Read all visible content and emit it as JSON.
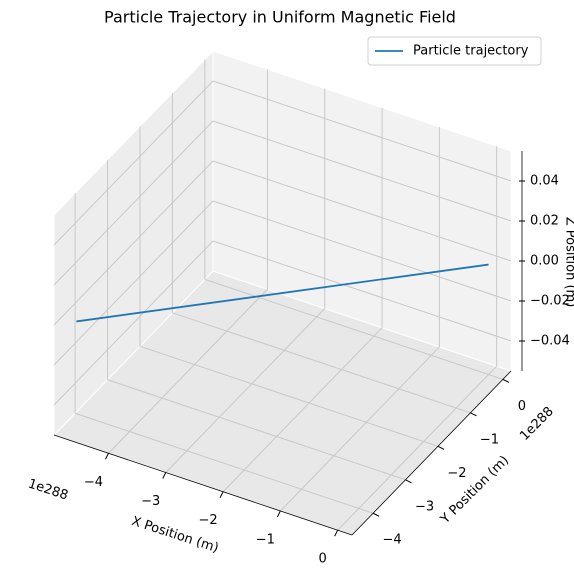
{
  "chart_data": {
    "type": "line3d",
    "title": "Particle Trajectory in Uniform Magnetic Field",
    "xlabel": "X Position (m)",
    "ylabel": "Y Position (m)",
    "zlabel": "Z Position (m)",
    "x_offset_label": "1e288",
    "y_offset_label": "1e288",
    "series": [
      {
        "name": "Particle trajectory",
        "color": "#1f77b4",
        "x": [
          0,
          -4.7
        ],
        "y": [
          0,
          -4.4
        ],
        "z": [
          0,
          0
        ]
      }
    ],
    "xlim": [
      -4.95,
      0.25
    ],
    "ylim": [
      -4.65,
      0.25
    ],
    "zlim": [
      -0.055,
      0.055
    ],
    "xticks": [
      {
        "value": -4,
        "label": "−4"
      },
      {
        "value": -3,
        "label": "−3"
      },
      {
        "value": -2,
        "label": "−2"
      },
      {
        "value": -1,
        "label": "−1"
      },
      0
    ],
    "yticks": [
      {
        "value": -4,
        "label": "−4"
      },
      {
        "value": -3,
        "label": "−3"
      },
      {
        "value": -2,
        "label": "−2"
      },
      {
        "value": -1,
        "label": "−1"
      },
      0
    ],
    "zticks": [
      {
        "value": -0.04,
        "label": "−0.04"
      },
      {
        "value": -0.02,
        "label": "−0.02"
      },
      {
        "value": 0,
        "label": "0.00"
      },
      {
        "value": 0.02,
        "label": "0.02"
      },
      {
        "value": 0.04,
        "label": "0.04"
      }
    ],
    "grid": true,
    "legend": "upper right"
  }
}
